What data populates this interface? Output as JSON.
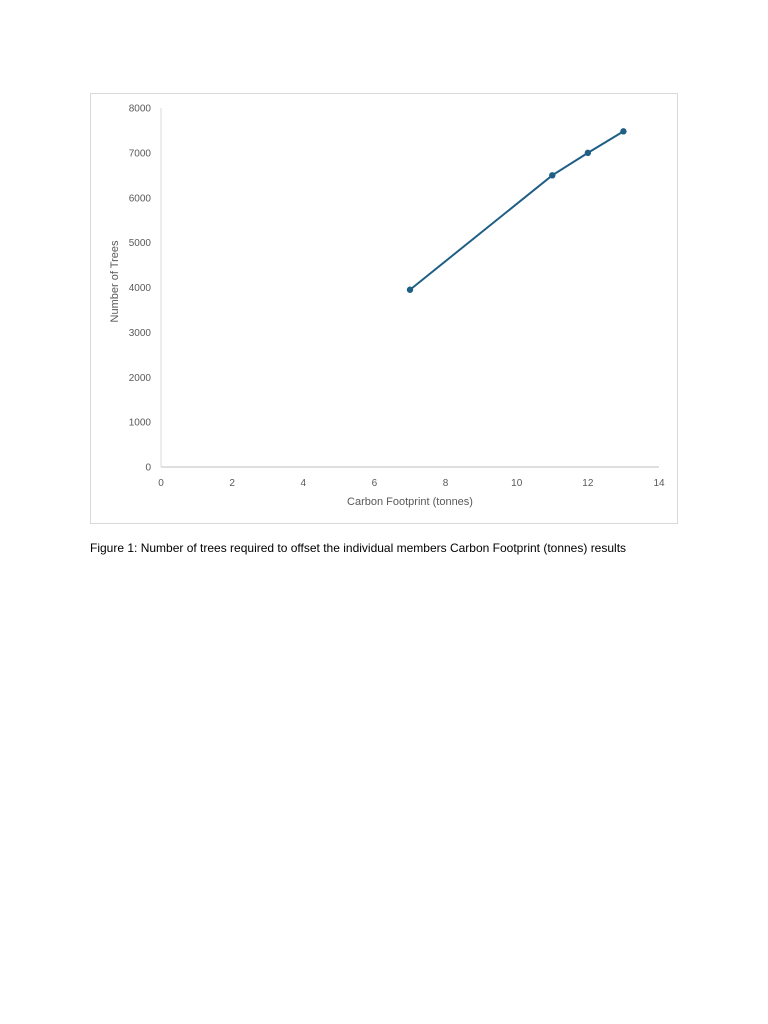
{
  "chart_data": {
    "type": "line",
    "title": "",
    "xlabel": "Carbon Footprint (tonnes)",
    "ylabel": "Number of Trees",
    "xlim": [
      0,
      14
    ],
    "ylim": [
      0,
      8000
    ],
    "x_ticks": [
      0,
      2,
      4,
      6,
      8,
      10,
      12,
      14
    ],
    "y_ticks": [
      0,
      1000,
      2000,
      3000,
      4000,
      5000,
      6000,
      7000,
      8000
    ],
    "grid": false,
    "legend": "none",
    "series": [
      {
        "color": "#1f5f86",
        "points": [
          {
            "x": 7,
            "y": 3950
          },
          {
            "x": 11,
            "y": 6500
          },
          {
            "x": 12,
            "y": 7000
          },
          {
            "x": 13,
            "y": 7480
          }
        ]
      }
    ]
  },
  "caption": "Figure 1: Number of trees required to offset the individual members Carbon Footprint (tonnes) results"
}
